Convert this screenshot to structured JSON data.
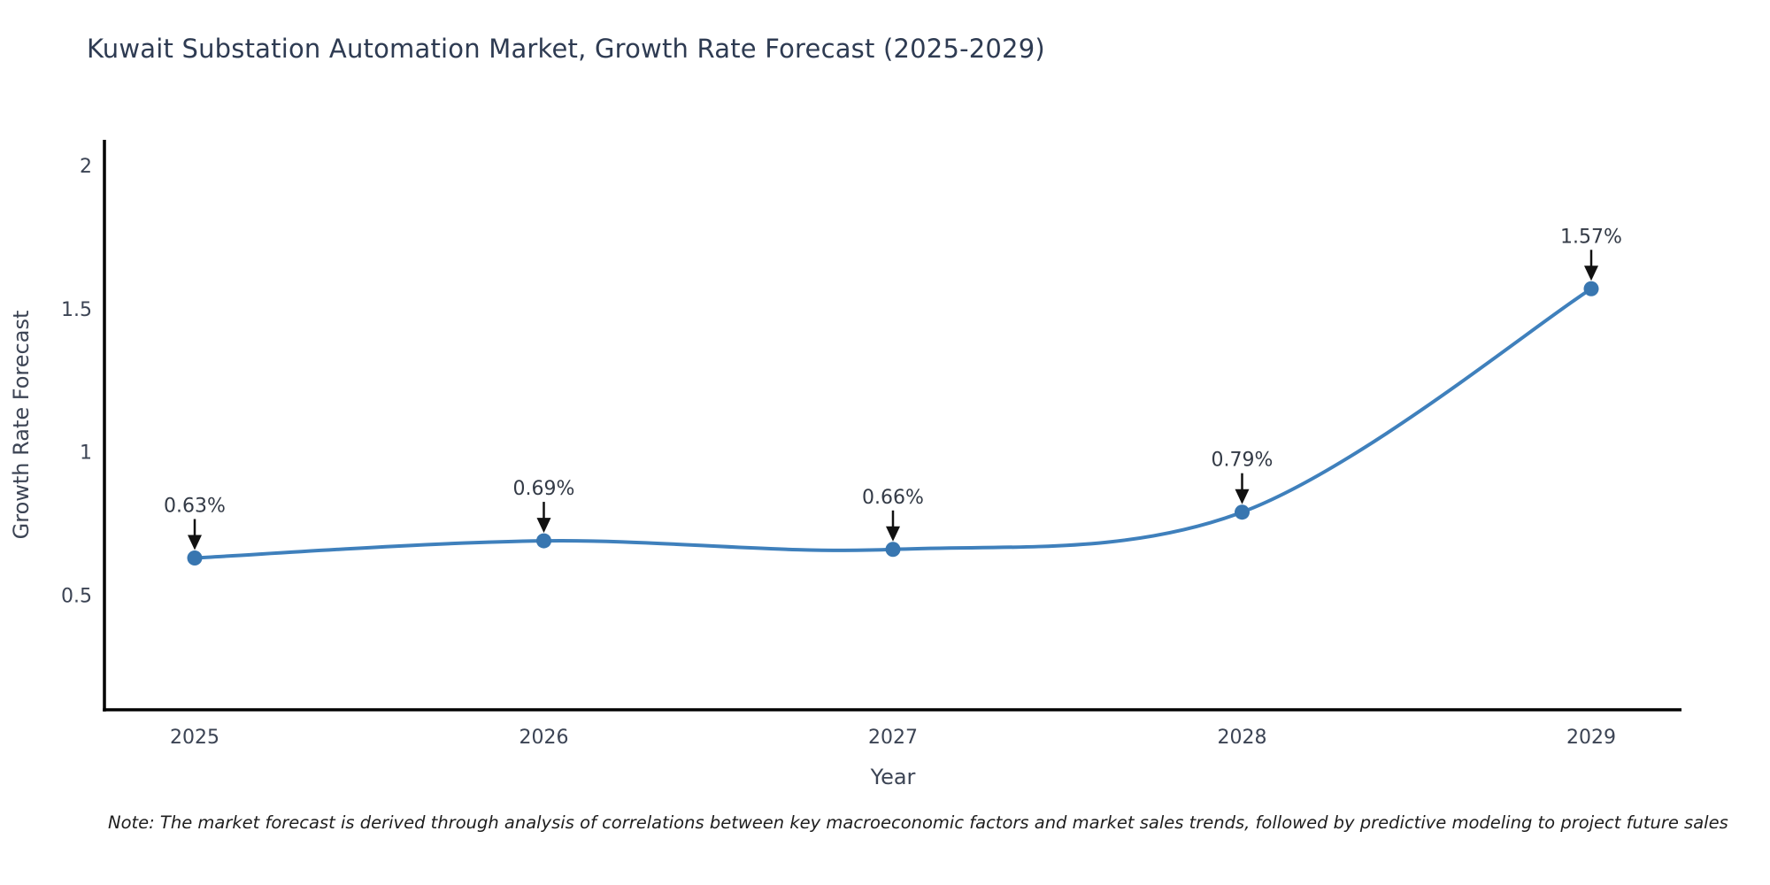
{
  "note": "Note: The market forecast is derived through analysis of correlations between key macroeconomic factors and market sales trends, followed by predictive modeling to project future sales",
  "chart_data": {
    "type": "line",
    "title": "Kuwait Substation Automation Market, Growth Rate Forecast (2025-2029)",
    "xlabel": "Year",
    "ylabel": "Growth Rate Forecast",
    "x": [
      2025,
      2026,
      2027,
      2028,
      2029
    ],
    "xticklabels": [
      "2025",
      "2026",
      "2027",
      "2028",
      "2029"
    ],
    "values": [
      0.63,
      0.69,
      0.66,
      0.79,
      1.57
    ],
    "point_labels": [
      "0.63%",
      "0.69%",
      "0.66%",
      "0.79%",
      "1.57%"
    ],
    "yticks": [
      0.5,
      1,
      1.5,
      2
    ],
    "yticklabels": [
      "0.5",
      "1",
      "1.5",
      "2"
    ],
    "ylim": [
      0.1,
      2.09
    ],
    "grid": false,
    "legend": "none",
    "line_shape": "spline",
    "line_color": "#3f80bc",
    "marker_color": "#3876b0",
    "axis_color": "#000000",
    "text_color": "#3c4454",
    "annotation_text_color": "#333a46",
    "annotation_arrow_color": "#111111"
  }
}
